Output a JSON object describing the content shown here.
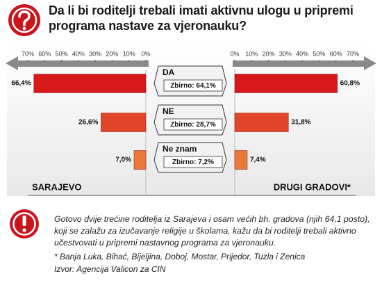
{
  "chart_data": {
    "type": "butterfly_bar",
    "title": "Da li bi roditelji trebali imati aktivnu ulogu u pripremi programa nastave za vjeronauku?",
    "categories": [
      "DA",
      "NE",
      "Ne znam"
    ],
    "colors": [
      "#d7191c",
      "#e2462a",
      "#e97a3c"
    ],
    "series": [
      {
        "name": "SARAJEVO",
        "side": "left",
        "values": [
          66.4,
          26.6,
          7.0
        ],
        "value_labels": [
          "66,4%",
          "26,6%",
          "7,0%"
        ]
      },
      {
        "name": "DRUGI GRADOVI*",
        "side": "right",
        "values": [
          60.8,
          31.8,
          7.4
        ],
        "value_labels": [
          "60,8%",
          "31,8%",
          "7,4%"
        ]
      }
    ],
    "totals": {
      "values": [
        64.1,
        28.7,
        7.2
      ],
      "value_labels": [
        "Zbirno: 64,1%",
        "Zbirno: 28,7%",
        "Zbirno: 7,2%"
      ]
    },
    "xlim": [
      0,
      70
    ],
    "xticks": [
      {
        "value": 0,
        "label": "0%"
      },
      {
        "value": 10,
        "label": "10%"
      },
      {
        "value": 20,
        "label": "20%"
      },
      {
        "value": 30,
        "label": "30%"
      },
      {
        "value": 40,
        "label": "40%"
      },
      {
        "value": 50,
        "label": "50%"
      },
      {
        "value": 60,
        "label": "60%"
      },
      {
        "value": 70,
        "label": "70%"
      }
    ],
    "annotations": [
      "Gotovo dvije trećine roditelja iz Sarajeva i osam većih bh. gradova (njih 64,1 posto), koji se zalažu za izučavanje religije u školama, kažu da bi roditelji trebali aktivno učestvovati u pripremi nastavnog programa za vjeronauku.",
      "* Banja Luka, Bihać, Bijeljina, Doboj, Mostar, Prijedor, Tuzla i Zenica",
      "Izvor: Agencija Valicon za CIN"
    ]
  }
}
